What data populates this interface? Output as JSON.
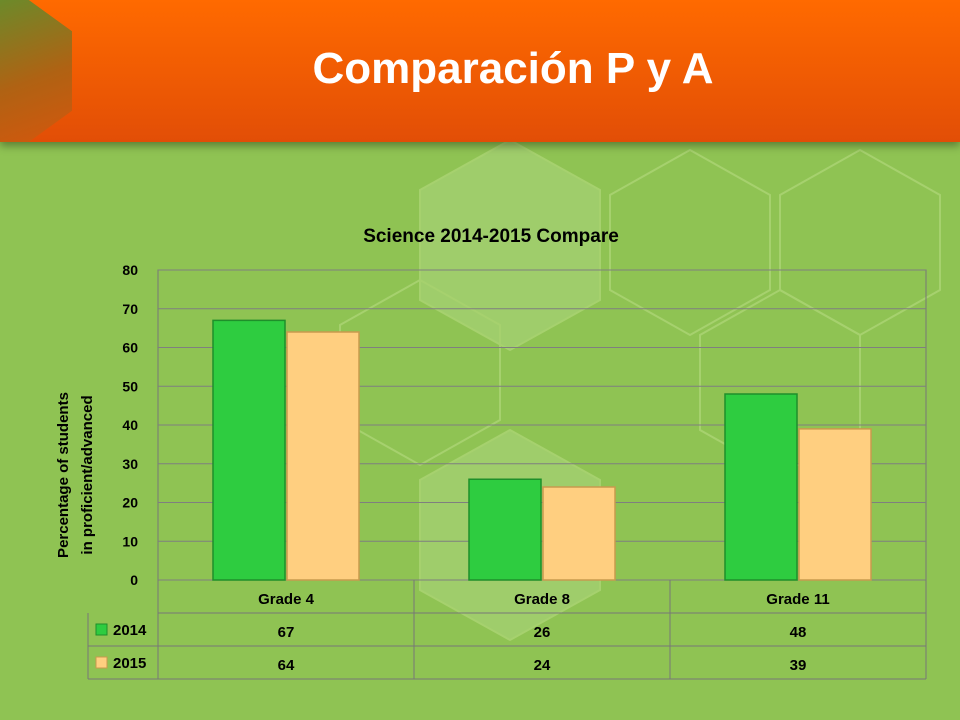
{
  "slide": {
    "title": "Comparación P y A"
  },
  "colors": {
    "s2014": "#2ecc40",
    "s2015": "#ffcf80",
    "titlebar": "#f25a04"
  },
  "chart_data": {
    "type": "bar",
    "title": "Science 2014-2015 Compare",
    "ylabel_lines": [
      "Percentage of students",
      "in proficient/advanced"
    ],
    "categories": [
      "Grade 4",
      "Grade 8",
      "Grade 11"
    ],
    "series": [
      {
        "name": "2014",
        "values": [
          67,
          26,
          48
        ],
        "labels": [
          "67",
          "26",
          "48"
        ]
      },
      {
        "name": "2015",
        "values": [
          64,
          24,
          39
        ],
        "labels": [
          "64",
          "24",
          "39"
        ]
      }
    ],
    "ylim": [
      0,
      80
    ],
    "yticks": [
      "0",
      "10",
      "20",
      "30",
      "40",
      "50",
      "60",
      "70",
      "80"
    ],
    "grid": true,
    "legend": "data-table"
  }
}
